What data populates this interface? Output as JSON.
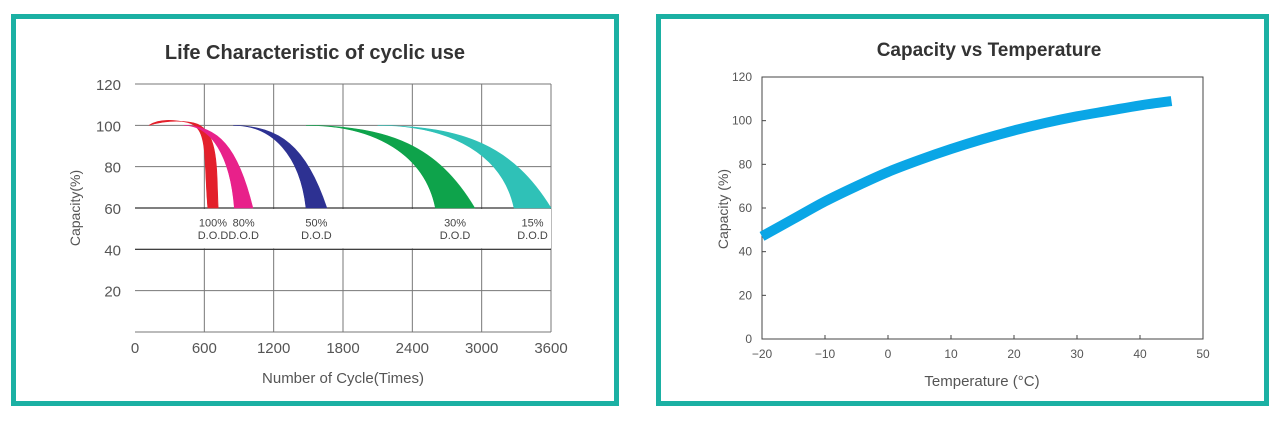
{
  "chart_data": [
    {
      "type": "area",
      "title": "Life Characteristic of cyclic use",
      "xlabel": "Number of Cycle(Times)",
      "ylabel": "Capacity(%)",
      "xlim": [
        0,
        3600
      ],
      "ylim": [
        0,
        120
      ],
      "xticks": [
        "0",
        "600",
        "1200",
        "1800",
        "2400",
        "3000",
        "3600"
      ],
      "yticks": [
        "20",
        "40",
        "60",
        "80",
        "100",
        "120"
      ],
      "grid": true,
      "series": [
        {
          "name": "100% D.O.D",
          "label_top": "100%",
          "label_bottom": "D.O.D",
          "color": "#e3202b",
          "start_x": 120,
          "peak_x": 300,
          "peak_y": 102,
          "end_x_min": 630,
          "end_x_max": 720,
          "end_y": 60
        },
        {
          "name": "80% D.O.D",
          "label_top": "80%",
          "label_bottom": "D.O.D",
          "color": "#e8218a",
          "start_x": 420,
          "end_x_min": 860,
          "end_x_max": 1020,
          "end_y": 60
        },
        {
          "name": "50% D.O.D",
          "label_top": "50%",
          "label_bottom": "D.O.D",
          "color": "#2d3192",
          "start_x": 850,
          "end_x_min": 1480,
          "end_x_max": 1660,
          "end_y": 60
        },
        {
          "name": "30% D.O.D",
          "label_top": "30%",
          "label_bottom": "D.O.D",
          "color": "#0ea34b",
          "start_x": 1480,
          "end_x_min": 2600,
          "end_x_max": 2940,
          "end_y": 60
        },
        {
          "name": "15% D.O.D",
          "label_top": "15%",
          "label_bottom": "D.O.D",
          "color": "#2fc1b7",
          "start_x": 2100,
          "end_x_min": 3280,
          "end_x_max": 3600,
          "end_y": 60
        }
      ]
    },
    {
      "type": "line",
      "title": "Capacity vs Temperature",
      "xlabel": "Temperature (°C)",
      "ylabel": "Capacity (%)",
      "xlim": [
        -20,
        50
      ],
      "ylim": [
        0,
        120
      ],
      "xticks": [
        "−20",
        "−10",
        "0",
        "10",
        "20",
        "30",
        "40",
        "50"
      ],
      "yticks": [
        "0",
        "20",
        "40",
        "60",
        "80",
        "100",
        "120"
      ],
      "grid": false,
      "color": "#0aa6e6",
      "x": [
        -20,
        -15,
        -10,
        -5,
        0,
        5,
        10,
        15,
        20,
        25,
        30,
        35,
        40,
        45
      ],
      "y": [
        47,
        55,
        63,
        70,
        76.5,
        82,
        87,
        91.5,
        95.5,
        99,
        102,
        104.5,
        107,
        109
      ]
    }
  ]
}
